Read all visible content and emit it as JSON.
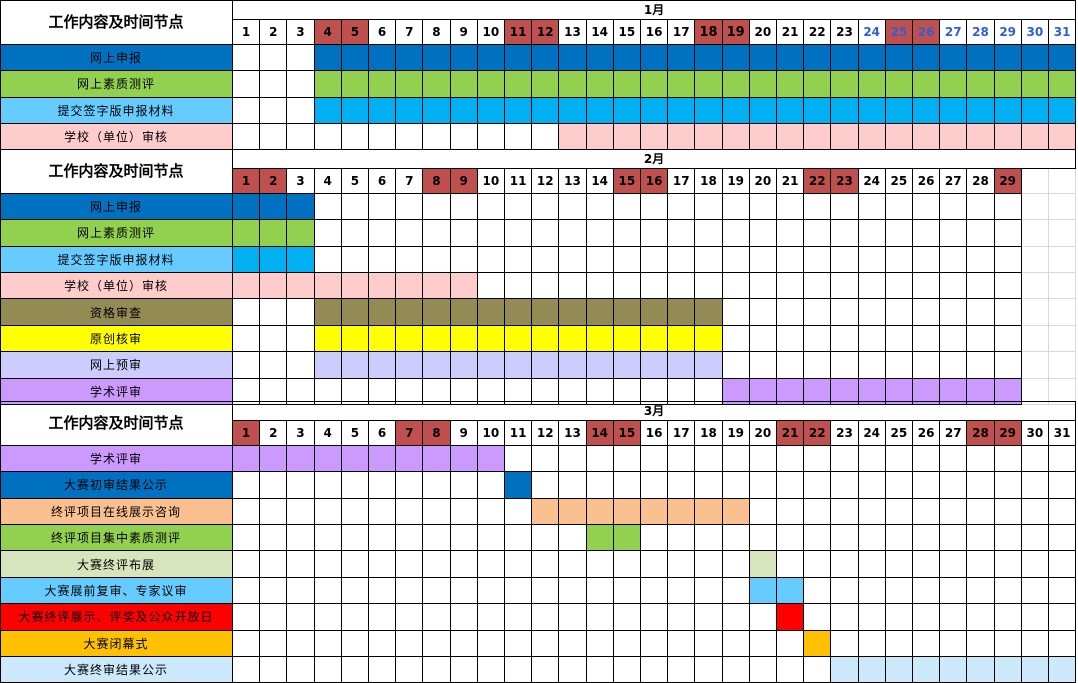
{
  "palette": {
    "weekend_red": "#c0504d",
    "blue_dark": "#0070c0",
    "green": "#92d050",
    "sky": "#66ccff",
    "sky2": "#00b0f0",
    "pink": "#ffcccc",
    "olive": "#948a54",
    "yellow": "#ffff00",
    "lavender": "#ccccff",
    "purple": "#cc99ff",
    "orange": "#fac090",
    "sage": "#d8e4bc",
    "red": "#ff0000",
    "amber": "#ffc000",
    "ice": "#cce9fb"
  },
  "sections": [
    {
      "header": "工作内容及时间节点",
      "month": "1月",
      "days": [
        "1",
        "2",
        "3",
        "4",
        "5",
        "6",
        "7",
        "8",
        "9",
        "10",
        "11",
        "12",
        "13",
        "14",
        "15",
        "16",
        "17",
        "18",
        "19",
        "20",
        "21",
        "22",
        "23",
        "24",
        "25",
        "26",
        "27",
        "28",
        "29",
        "30",
        "31"
      ],
      "red_days": [
        4,
        5,
        11,
        12,
        18,
        19,
        25,
        26
      ],
      "blue_days": [
        24,
        25,
        26,
        27,
        28,
        29,
        30,
        31
      ],
      "big_days": [
        18,
        19
      ],
      "tasks": [
        {
          "label": "网上申报",
          "label_color": "#0070c0",
          "bar_color": "#0070c0",
          "start": 4,
          "end": 31
        },
        {
          "label": "网上素质测评",
          "label_color": "#92d050",
          "bar_color": "#92d050",
          "start": 4,
          "end": 31
        },
        {
          "label": "提交签字版申报材料",
          "label_color": "#66ccff",
          "bar_color": "#00b0f0",
          "start": 4,
          "end": 31
        },
        {
          "label": "学校（单位）审核",
          "label_color": "#ffcccc",
          "bar_color": "#ffcccc",
          "start": 13,
          "end": 31
        }
      ]
    },
    {
      "header": "工作内容及时间节点",
      "month": "2月",
      "days": [
        "1",
        "2",
        "3",
        "4",
        "5",
        "6",
        "7",
        "8",
        "9",
        "10",
        "11",
        "12",
        "13",
        "14",
        "15",
        "16",
        "17",
        "18",
        "19",
        "20",
        "21",
        "22",
        "23",
        "24",
        "25",
        "26",
        "27",
        "28",
        "29"
      ],
      "red_days": [
        1,
        2,
        8,
        9,
        15,
        16,
        22,
        23,
        29
      ],
      "blue_days": [],
      "big_days": [],
      "tasks": [
        {
          "label": "网上申报",
          "label_color": "#0070c0",
          "bar_color": "#0070c0",
          "start": 1,
          "end": 3
        },
        {
          "label": "网上素质测评",
          "label_color": "#92d050",
          "bar_color": "#92d050",
          "start": 1,
          "end": 3
        },
        {
          "label": "提交签字版申报材料",
          "label_color": "#66ccff",
          "bar_color": "#00b0f0",
          "start": 1,
          "end": 3
        },
        {
          "label": "学校（单位）审核",
          "label_color": "#ffcccc",
          "bar_color": "#ffcccc",
          "start": 1,
          "end": 9
        },
        {
          "label": "资格审查",
          "label_color": "#948a54",
          "bar_color": "#948a54",
          "start": 4,
          "end": 18
        },
        {
          "label": "原创核审",
          "label_color": "#ffff00",
          "bar_color": "#ffff00",
          "start": 4,
          "end": 18
        },
        {
          "label": "网上预审",
          "label_color": "#ccccff",
          "bar_color": "#ccccff",
          "start": 4,
          "end": 18
        },
        {
          "label": "学术评审",
          "label_color": "#cc99ff",
          "bar_color": "#cc99ff",
          "start": 19,
          "end": 29
        }
      ]
    },
    {
      "header": "工作内容及时间节点",
      "month": "3月",
      "days": [
        "1",
        "2",
        "3",
        "4",
        "5",
        "6",
        "7",
        "8",
        "9",
        "10",
        "11",
        "12",
        "13",
        "14",
        "15",
        "16",
        "17",
        "18",
        "19",
        "20",
        "21",
        "22",
        "23",
        "24",
        "25",
        "26",
        "27",
        "28",
        "29",
        "30",
        "31"
      ],
      "red_days": [
        1,
        7,
        8,
        14,
        15,
        21,
        22,
        28,
        29
      ],
      "blue_days": [],
      "big_days": [],
      "tasks": [
        {
          "label": "学术评审",
          "label_color": "#cc99ff",
          "bar_color": "#cc99ff",
          "start": 1,
          "end": 10
        },
        {
          "label": "大赛初审结果公示",
          "label_color": "#0070c0",
          "bar_color": "#0070c0",
          "start": 11,
          "end": 11
        },
        {
          "label": "终评项目在线展示咨询",
          "label_color": "#fac090",
          "bar_color": "#fac090",
          "start": 12,
          "end": 19
        },
        {
          "label": "终评项目集中素质测评",
          "label_color": "#92d050",
          "bar_color": "#92d050",
          "start": 14,
          "end": 15
        },
        {
          "label": "大赛终评布展",
          "label_color": "#d8e4bc",
          "bar_color": "#d8e4bc",
          "start": 20,
          "end": 20
        },
        {
          "label": "大赛展前复审、专家议审",
          "label_color": "#66ccff",
          "bar_color": "#66ccff",
          "start": 20,
          "end": 21
        },
        {
          "label": "大赛终评展示、评奖及公众开放日",
          "label_color": "#ff0000",
          "bar_color": "#ff0000",
          "start": 21,
          "end": 21
        },
        {
          "label": "大赛闭幕式",
          "label_color": "#ffc000",
          "bar_color": "#ffc000",
          "start": 22,
          "end": 22
        },
        {
          "label": "大赛终审结果公示",
          "label_color": "#cce9fb",
          "bar_color": "#cce9fb",
          "start": 23,
          "end": 31
        }
      ]
    }
  ]
}
